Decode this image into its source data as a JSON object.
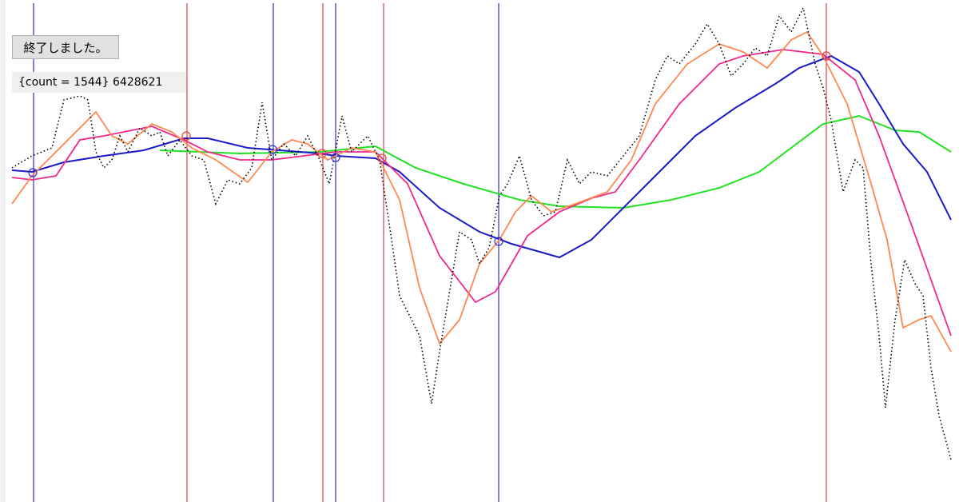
{
  "button": {
    "label": "終了しました。"
  },
  "status": {
    "text": "{count = 1544} 6428621"
  }
}
